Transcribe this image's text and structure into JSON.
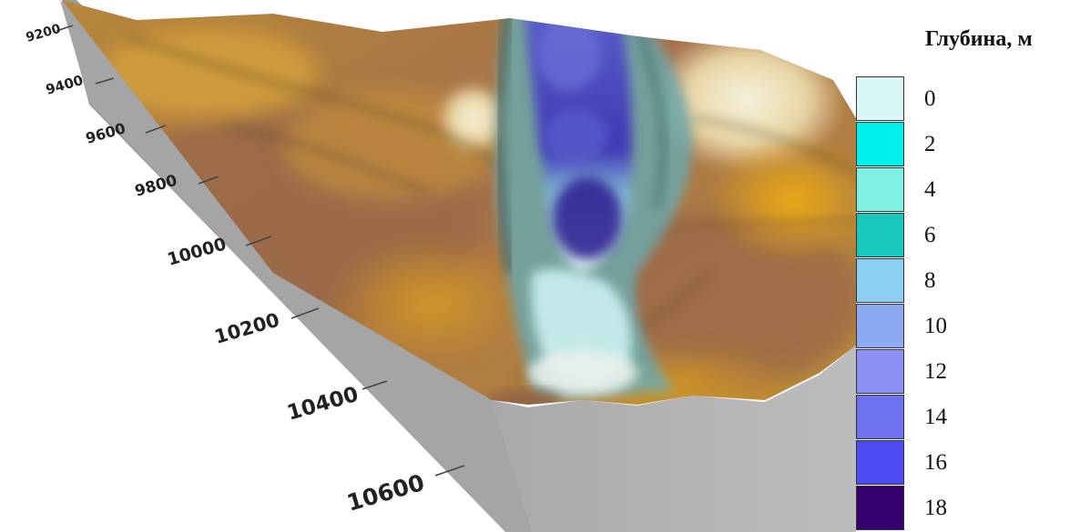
{
  "axis": {
    "ticks": [
      "9200",
      "9400",
      "9600",
      "9800",
      "10000",
      "10200",
      "10400",
      "10600"
    ]
  },
  "legend": {
    "title": "Глубина, м",
    "items": [
      {
        "label": "0",
        "color": "#d9f7f7"
      },
      {
        "label": "2",
        "color": "#00f0ee"
      },
      {
        "label": "4",
        "color": "#7ff1e3"
      },
      {
        "label": "6",
        "color": "#17c9bc"
      },
      {
        "label": "8",
        "color": "#8ccff4"
      },
      {
        "label": "10",
        "color": "#8ca9f1"
      },
      {
        "label": "12",
        "color": "#8c8ff4"
      },
      {
        "label": "14",
        "color": "#6e71f0"
      },
      {
        "label": "16",
        "color": "#4c4cf2"
      },
      {
        "label": "18",
        "color": "#36006f"
      }
    ]
  }
}
